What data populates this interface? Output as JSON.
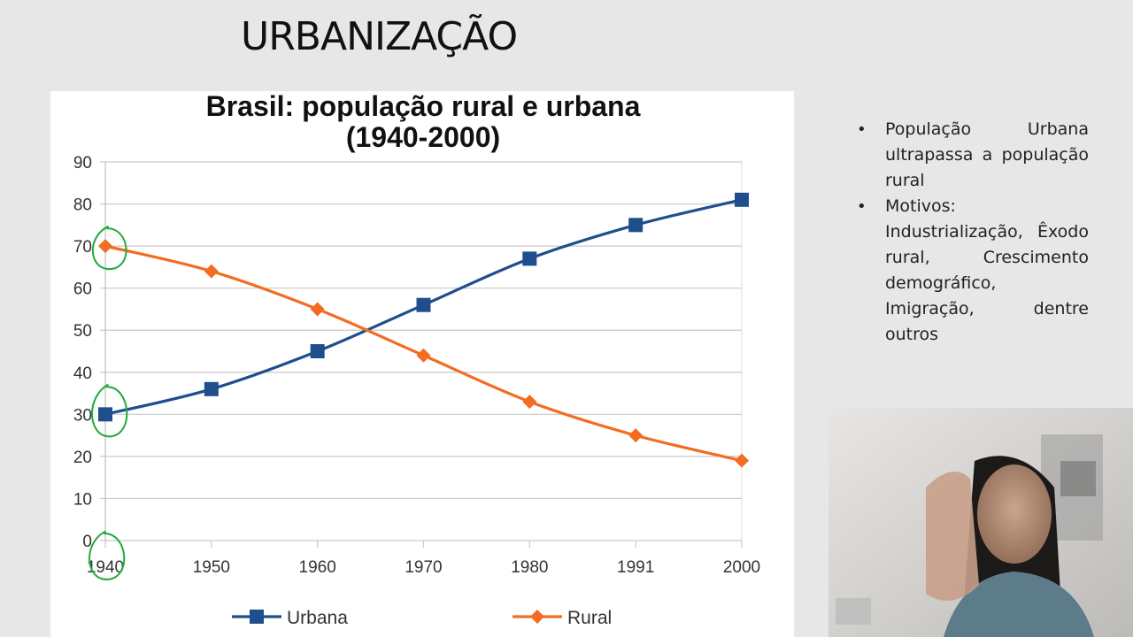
{
  "slide": {
    "title": "URBANIZAÇÃO"
  },
  "bullets": [
    "População Urbana ultrapassa a população rural",
    "Motivos: Industrialização, Êxodo rural, Crescimento demográfico, Imigração, dentre outros"
  ],
  "chart_data": {
    "type": "line",
    "title": "Brasil: população rural e urbana",
    "subtitle": "(1940-2000)",
    "categories": [
      "1940",
      "1950",
      "1960",
      "1970",
      "1980",
      "1991",
      "2000"
    ],
    "series": [
      {
        "name": "Urbana",
        "values": [
          30,
          36,
          45,
          56,
          67,
          75,
          81
        ],
        "color": "#1f4e8c",
        "marker": "square"
      },
      {
        "name": "Rural",
        "values": [
          70,
          64,
          55,
          44,
          33,
          25,
          19
        ],
        "color": "#f26c22",
        "marker": "diamond"
      }
    ],
    "ylim": [
      0,
      90
    ],
    "yticks": [
      "0",
      "10",
      "20",
      "30",
      "40",
      "50",
      "60",
      "70",
      "80",
      "90"
    ],
    "grid": true,
    "legend": "bottom",
    "annotation_color": "#1faa3a"
  },
  "webcam": {
    "icon": "presenter-video"
  }
}
